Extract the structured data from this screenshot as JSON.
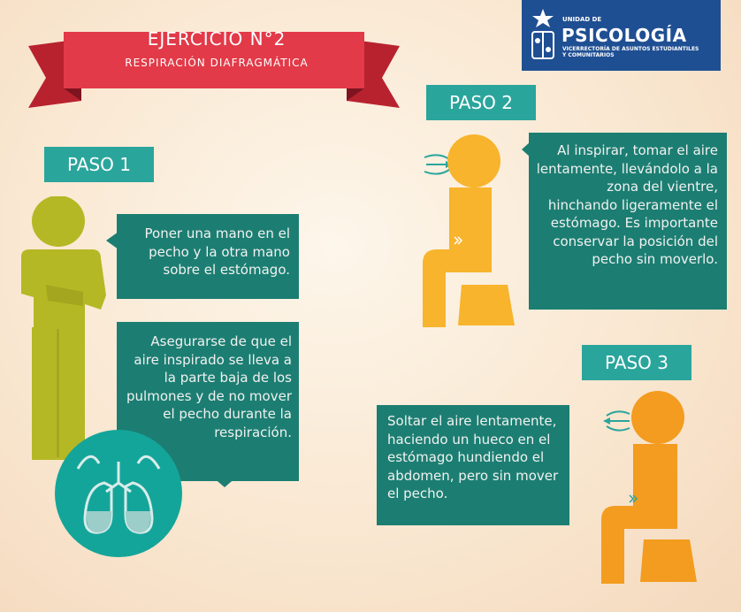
{
  "header": {
    "title": "EJERCICIO N°2",
    "subtitle": "RESPIRACIÓN DIAFRAGMÁTICA"
  },
  "logo": {
    "unit": "UNIDAD DE",
    "name": "PSICOLOGÍA",
    "subline1": "VICERRECTORÍA DE ASUNTOS ESTUDIANTILES",
    "subline2": "Y COMUNITARIOS"
  },
  "step1": {
    "label": "PASO 1",
    "text1": "Poner una mano en el pecho y la otra mano sobre el estómago.",
    "text2": "Asegurarse de que el aire inspirado se lleva a la parte baja de los pulmones y de no mover el pecho durante la respiración."
  },
  "step2": {
    "label": "PASO 2",
    "text": "Al inspirar, tomar el aire lentamente, llevándolo a la zona del vientre, hinchando ligeramente el estómago. Es importante conservar la posición del pecho sin moverlo."
  },
  "step3": {
    "label": "PASO 3",
    "text": "Soltar el aire lentamente, haciendo un hueco en el estómago hundiendo el abdomen, pero sin mover el pecho."
  },
  "colors": {
    "ribbon": "#e23a48",
    "teal_label": "#2aa59c",
    "teal_box": "#1c7e72",
    "figure_green": "#b5b825",
    "figure_yellow": "#f7b42c",
    "figure_orange": "#f39c1f",
    "lungs_circle": "#14a59a",
    "logo_blue": "#1f4f93"
  }
}
